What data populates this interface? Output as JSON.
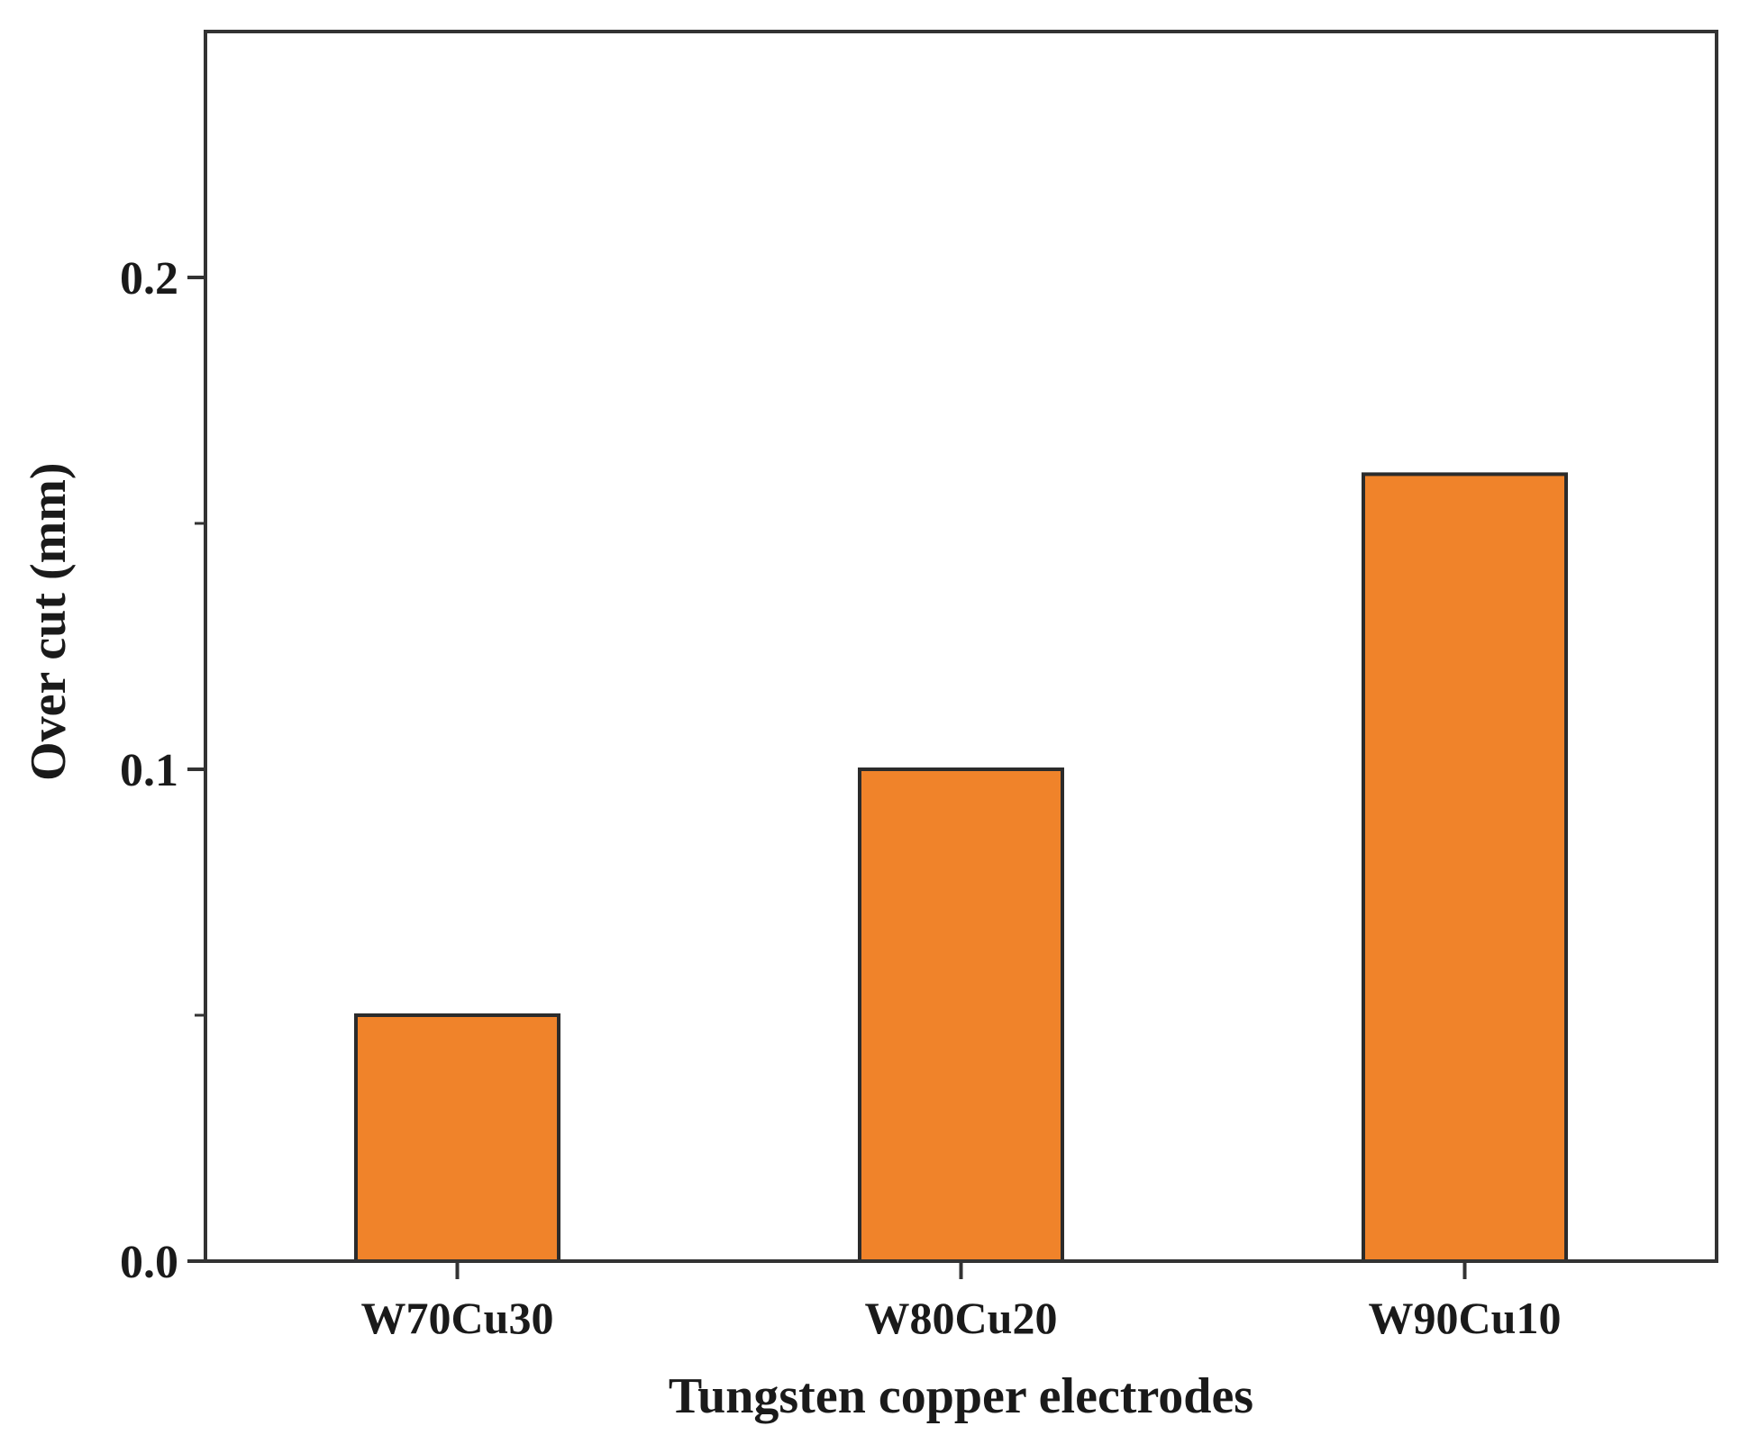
{
  "chart_data": {
    "type": "bar",
    "categories": [
      "W70Cu30",
      "W80Cu20",
      "W90Cu10"
    ],
    "values": [
      0.05,
      0.1,
      0.16
    ],
    "xlabel": "Tungsten copper electrodes",
    "ylabel": "Over cut (mm)",
    "ylim": [
      0,
      0.25
    ],
    "yticks": [
      0.0,
      0.1,
      0.2
    ],
    "ytick_labels": [
      "0.0",
      "0.1",
      "0.2"
    ],
    "minor_yticks": [
      0.05,
      0.15
    ],
    "grid": false,
    "legend": false,
    "bar_color": "#f0832a",
    "bar_edge_color": "#2b2b2b"
  }
}
